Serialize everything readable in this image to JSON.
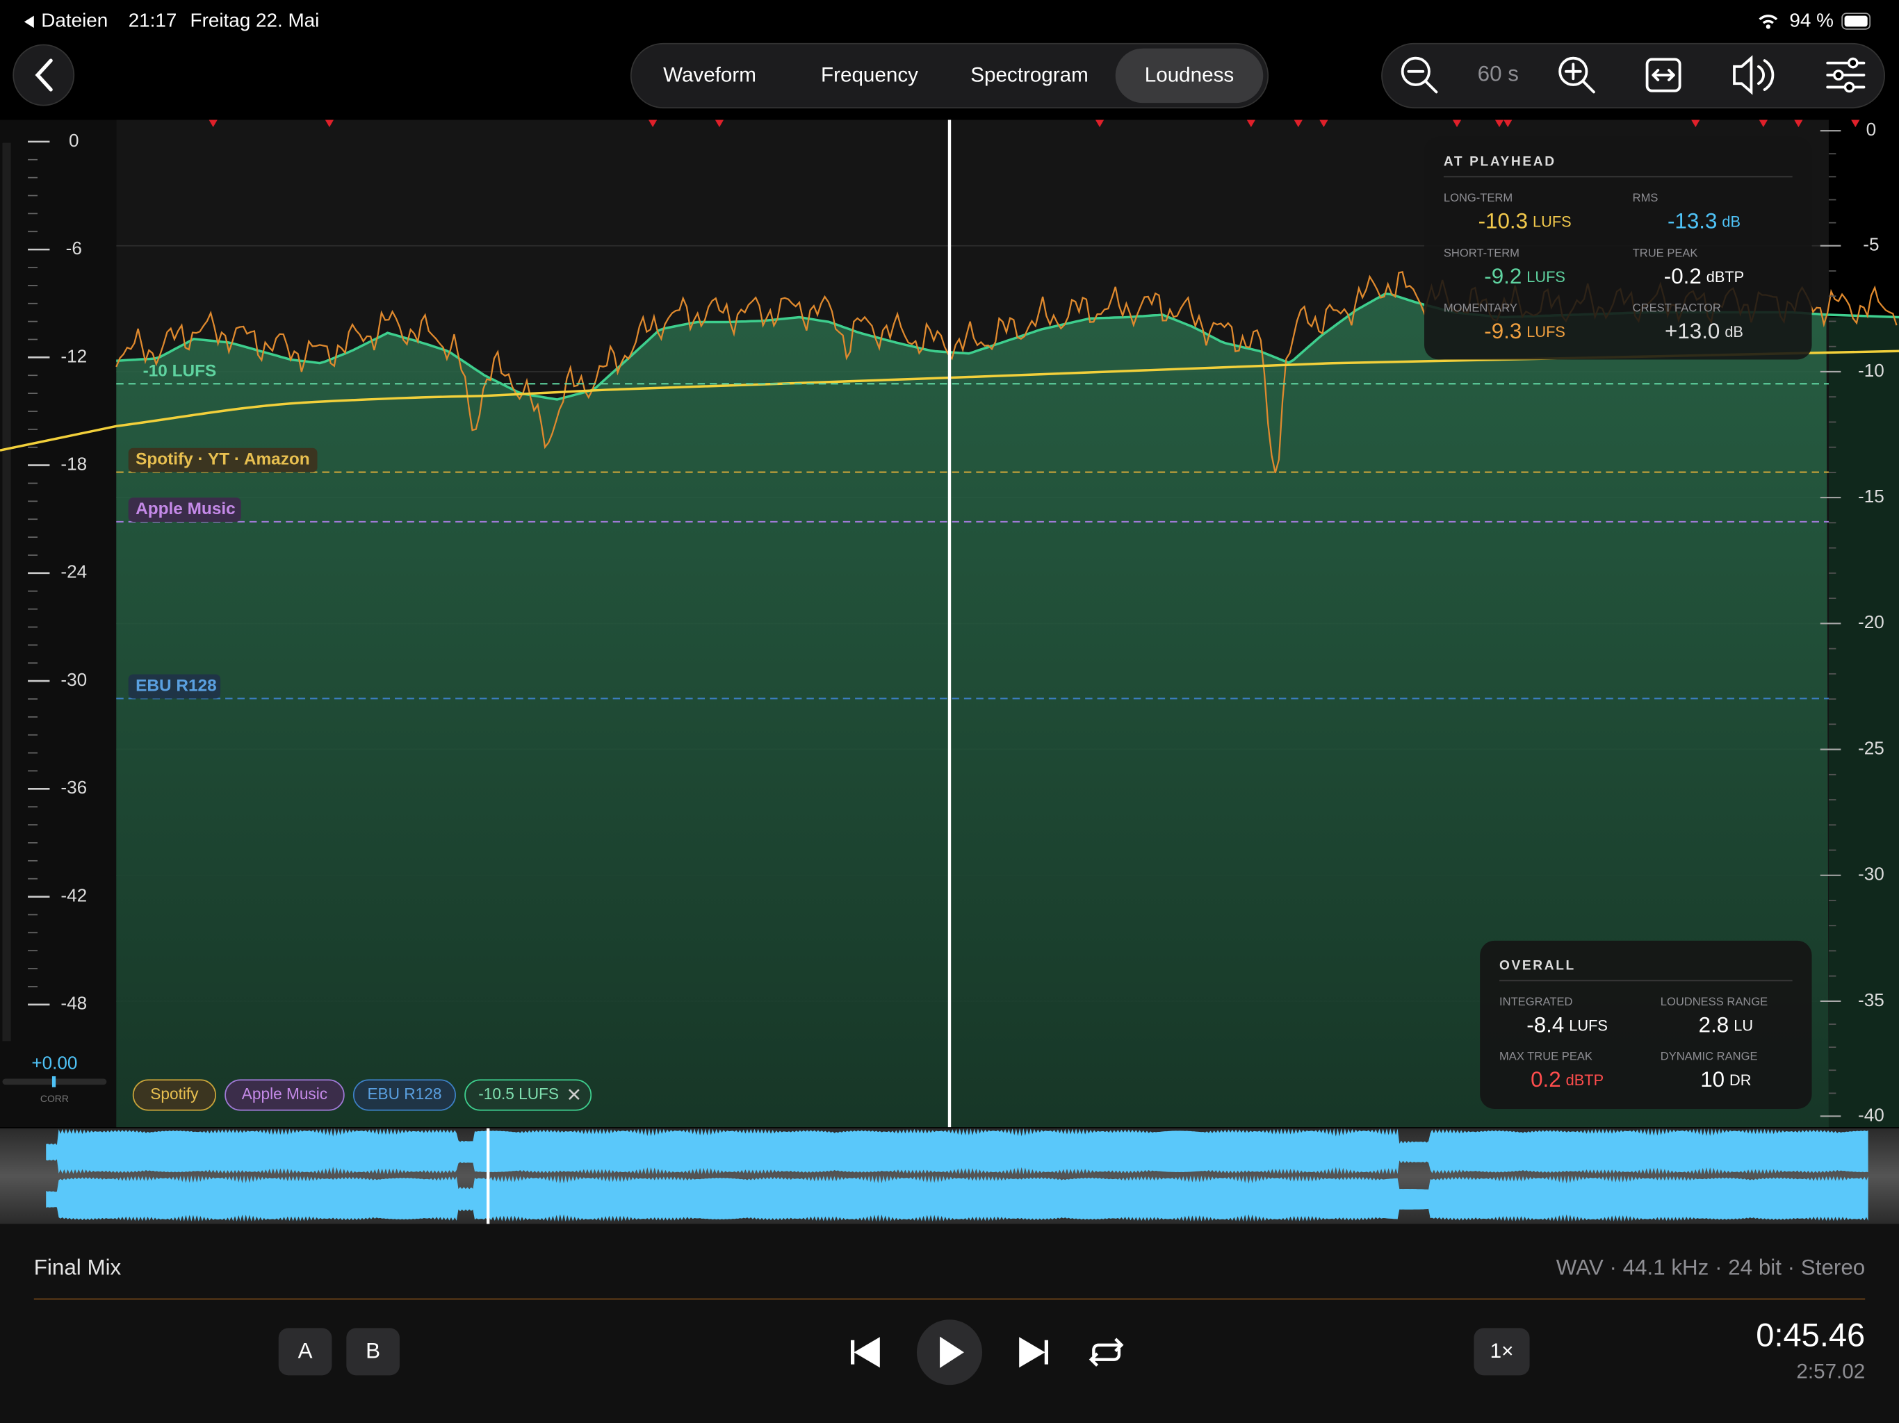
{
  "status_bar": {
    "back_app": "Dateien",
    "time": "21:17",
    "date": "Freitag 22. Mai",
    "battery": "94 %"
  },
  "toolbar": {
    "tabs": [
      "Waveform",
      "Frequency",
      "Spectrogram",
      "Loudness"
    ],
    "zoom": "60 s"
  },
  "left_meter": {
    "scale": [
      "0",
      "-6",
      "-12",
      "-18",
      "-24",
      "-30",
      "-36",
      "-42",
      "-48"
    ],
    "correlation": "+0.00",
    "correlation_label": "CORR"
  },
  "right_scale": [
    "0",
    "-5",
    "-10",
    "-15",
    "-20",
    "-25",
    "-30",
    "-35",
    "-40"
  ],
  "reference_lines": [
    "-10 LUFS",
    "Spotify · YT · Amazon",
    "Apple Music",
    "EBU R128"
  ],
  "at_playhead": {
    "title": "AT PLAYHEAD",
    "metrics": [
      {
        "label": "LONG-TERM",
        "value": "-10.3",
        "unit": "LUFS"
      },
      {
        "label": "RMS",
        "value": "-13.3",
        "unit": "dB"
      },
      {
        "label": "SHORT-TERM",
        "value": "-9.2",
        "unit": "LUFS"
      },
      {
        "label": "TRUE PEAK",
        "value": "-0.2",
        "unit": "dBTP"
      },
      {
        "label": "MOMENTARY",
        "value": "-9.3",
        "unit": "LUFS"
      },
      {
        "label": "CREST FACTOR",
        "value": "+13.0",
        "unit": "dB"
      }
    ]
  },
  "overall": {
    "title": "OVERALL",
    "metrics": [
      {
        "label": "INTEGRATED",
        "value": "-8.4",
        "unit": "LUFS"
      },
      {
        "label": "LOUDNESS RANGE",
        "value": "2.8",
        "unit": "LU"
      },
      {
        "label": "MAX TRUE PEAK",
        "value": "0.2",
        "unit": "dBTP"
      },
      {
        "label": "DYNAMIC RANGE",
        "value": "10",
        "unit": "DR"
      }
    ]
  },
  "chips": [
    "Spotify",
    "Apple Music",
    "EBU R128",
    "-10.5 LUFS"
  ],
  "track": {
    "name": "Final Mix",
    "format": "WAV · 44.1 kHz · 24 bit · Stereo"
  },
  "transport": {
    "a": "A",
    "b": "B",
    "speed": "1×",
    "position": "0:45.46",
    "duration": "2:57.02"
  }
}
